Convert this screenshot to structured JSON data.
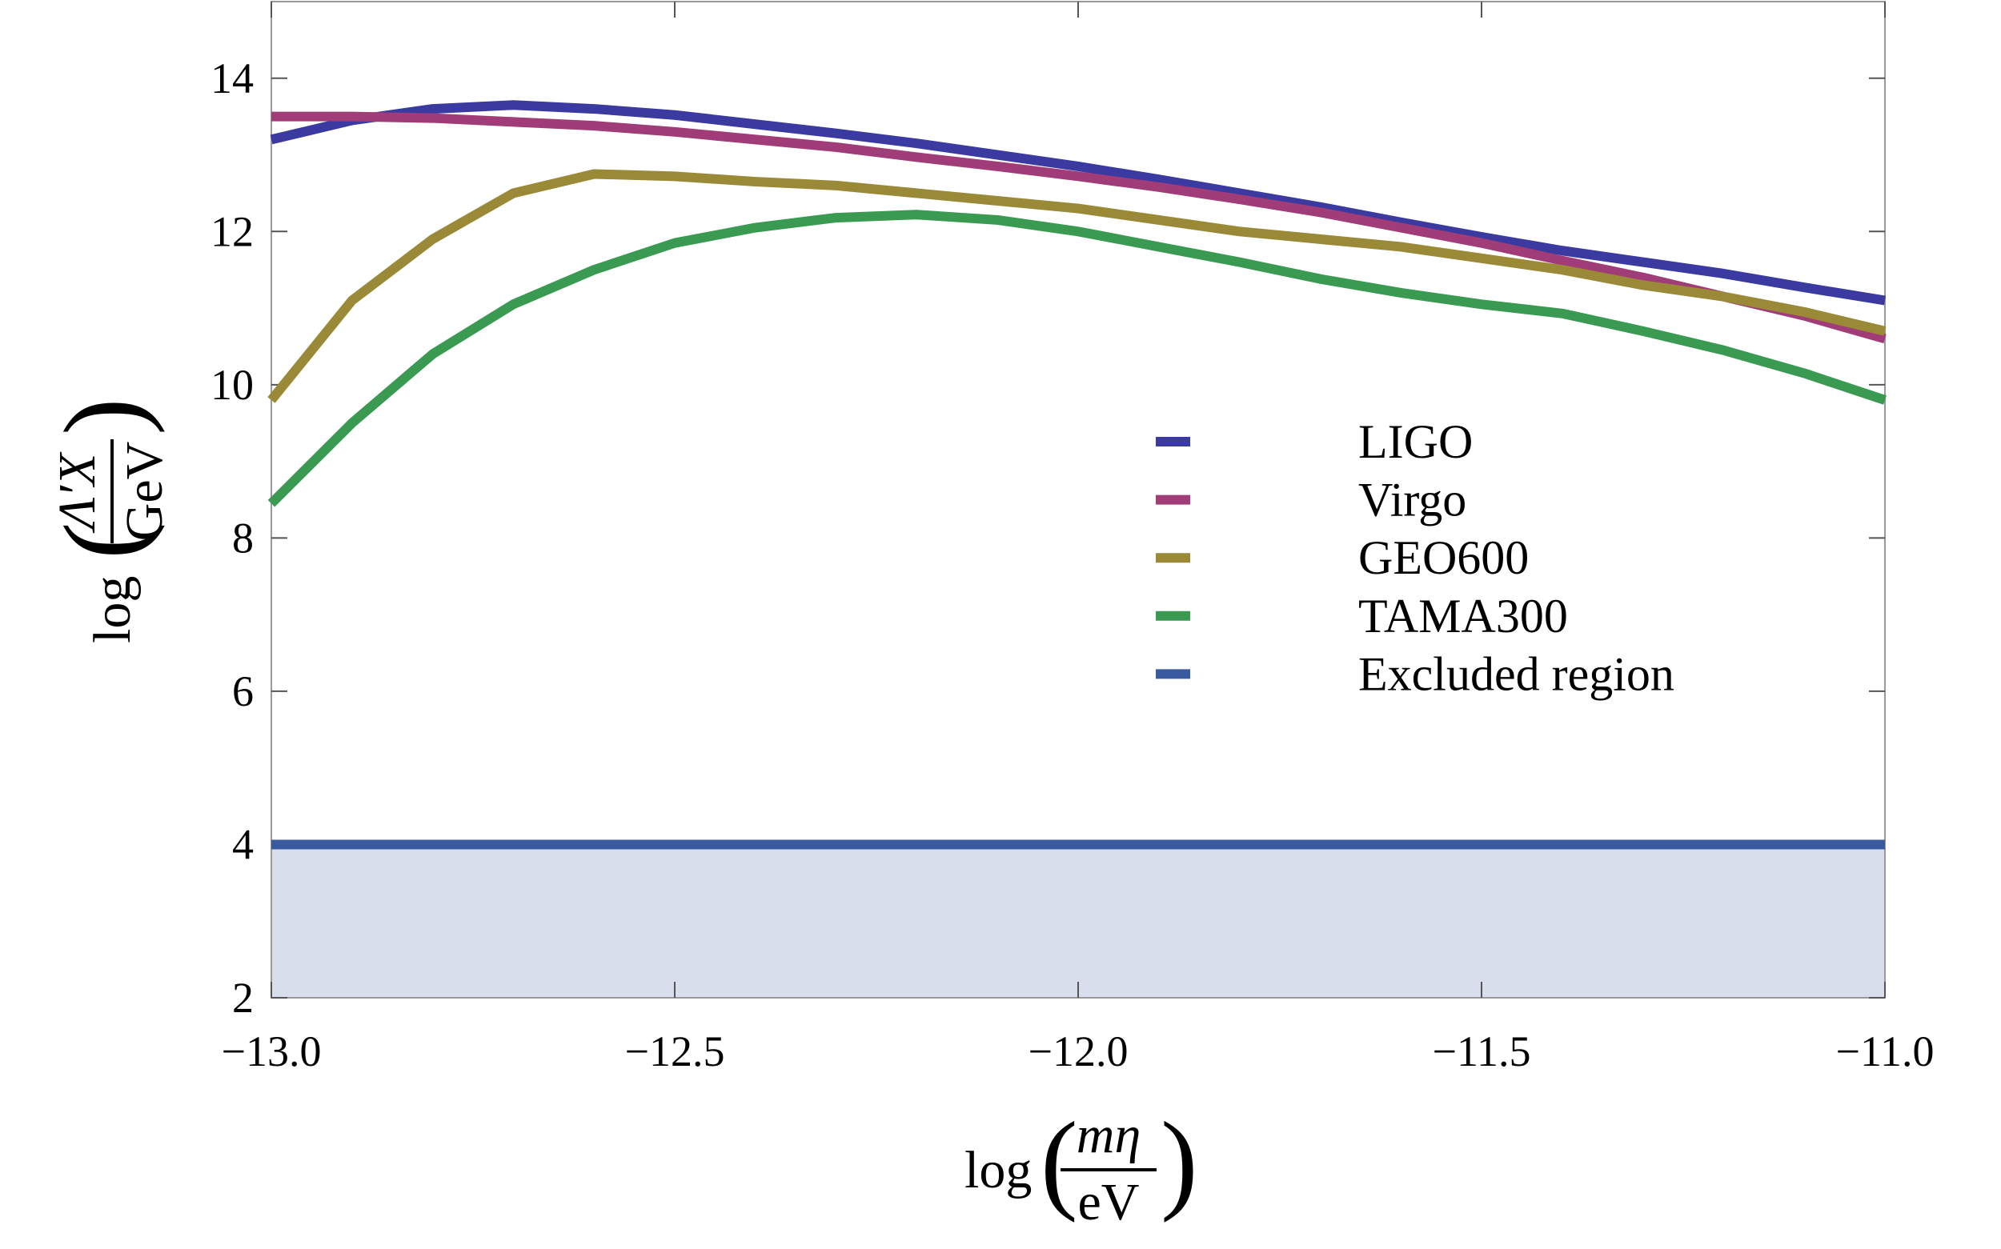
{
  "chart_data": {
    "type": "line",
    "x_label": {
      "function": "log",
      "numerator": "mη",
      "denominator": "eV"
    },
    "y_label": {
      "function": "log",
      "numerator": "Λ′X",
      "denominator": "GeV"
    },
    "xlim": [
      -13,
      -11
    ],
    "ylim": [
      2,
      15
    ],
    "xticks": [
      {
        "value": -13,
        "label": "−13.0"
      },
      {
        "value": -12.5,
        "label": "−12.5"
      },
      {
        "value": -12,
        "label": "−12.0"
      },
      {
        "value": -11.5,
        "label": "−11.5"
      },
      {
        "value": -11,
        "label": "−11.0"
      }
    ],
    "yticks": [
      2,
      4,
      6,
      8,
      10,
      12,
      14
    ],
    "x": [
      -13,
      -12.9,
      -12.8,
      -12.7,
      -12.6,
      -12.5,
      -12.4,
      -12.3,
      -12.2,
      -12.1,
      -12,
      -11.9,
      -11.8,
      -11.7,
      -11.6,
      -11.5,
      -11.4,
      -11.3,
      -11.2,
      -11.1,
      -11
    ],
    "series": [
      {
        "name": "LIGO",
        "color": "#3b3aa0",
        "values": [
          13.2,
          13.45,
          13.6,
          13.65,
          13.6,
          13.52,
          13.4,
          13.28,
          13.15,
          13.0,
          12.85,
          12.68,
          12.5,
          12.32,
          12.12,
          11.93,
          11.75,
          11.6,
          11.45,
          11.27,
          11.1
        ]
      },
      {
        "name": "Virgo",
        "color": "#a03c78",
        "values": [
          13.5,
          13.5,
          13.48,
          13.43,
          13.38,
          13.3,
          13.2,
          13.1,
          12.97,
          12.85,
          12.72,
          12.58,
          12.42,
          12.25,
          12.05,
          11.85,
          11.62,
          11.4,
          11.15,
          10.9,
          10.6
        ]
      },
      {
        "name": "GEO600",
        "color": "#9a8a38",
        "values": [
          9.8,
          11.1,
          11.9,
          12.5,
          12.75,
          12.72,
          12.65,
          12.6,
          12.5,
          12.4,
          12.3,
          12.15,
          12.0,
          11.9,
          11.8,
          11.65,
          11.5,
          11.3,
          11.15,
          10.95,
          10.7
        ]
      },
      {
        "name": "TAMA300",
        "color": "#3a9a52",
        "values": [
          8.45,
          9.5,
          10.4,
          11.05,
          11.5,
          11.85,
          12.05,
          12.18,
          12.22,
          12.15,
          12.0,
          11.8,
          11.6,
          11.38,
          11.2,
          11.05,
          10.93,
          10.7,
          10.45,
          10.15,
          9.8
        ]
      }
    ],
    "excluded_region": {
      "name": "Excluded region",
      "color": "#3a5aa0",
      "fill_color": "#d8deec",
      "value": 4
    }
  }
}
